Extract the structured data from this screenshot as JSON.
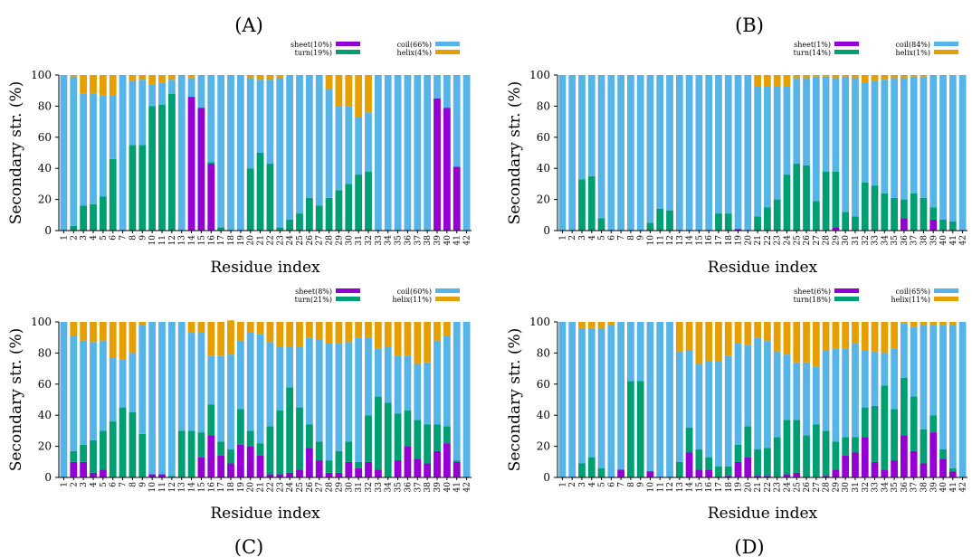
{
  "colors": {
    "sheet": "#9400d3",
    "turn": "#009e73",
    "coil": "#56b4e9",
    "helix": "#e69f00"
  },
  "chart_data": [
    {
      "panel": "(A)",
      "type": "bar",
      "stacked": true,
      "xlabel": "Residue index",
      "ylabel": "Secondary str. (%)",
      "ylim": [
        0,
        100
      ],
      "yticks": [
        0,
        20,
        40,
        60,
        80,
        100
      ],
      "legend": {
        "sheet": "sheet(10%)",
        "turn": "turn(19%)",
        "coil": "coil(66%)",
        "helix": "helix(4%)"
      },
      "categories": [
        "1",
        "2",
        "3",
        "4",
        "5",
        "6",
        "7",
        "8",
        "9",
        "10",
        "11",
        "12",
        "13",
        "14",
        "15",
        "16",
        "17",
        "18",
        "19",
        "20",
        "21",
        "22",
        "23",
        "24",
        "25",
        "26",
        "27",
        "28",
        "29",
        "30",
        "31",
        "32",
        "33",
        "34",
        "35",
        "36",
        "37",
        "38",
        "39",
        "40",
        "41",
        "42"
      ],
      "series": [
        {
          "key": "sheet",
          "values": [
            0,
            0,
            0,
            0,
            0,
            0,
            0,
            0,
            0,
            0,
            0,
            0,
            0,
            86,
            79,
            43,
            0,
            0,
            0,
            0,
            0,
            0,
            0,
            0,
            0,
            0,
            0,
            0,
            0,
            0,
            0,
            0,
            0,
            0,
            0,
            0,
            0,
            0,
            85,
            79,
            41,
            0
          ]
        },
        {
          "key": "turn",
          "values": [
            0,
            3,
            16,
            17,
            22,
            46,
            0,
            55,
            55,
            80,
            81,
            88,
            0,
            0,
            0,
            1,
            2,
            0,
            0,
            40,
            50,
            43,
            2,
            7,
            11,
            21,
            16,
            21,
            26,
            30,
            36,
            38,
            0,
            0,
            0,
            0,
            0,
            0,
            0,
            0,
            0,
            0
          ]
        },
        {
          "key": "coil",
          "values": [
            100,
            96,
            72,
            71,
            65,
            41,
            100,
            41,
            42,
            14,
            14,
            9,
            100,
            12,
            21,
            56,
            98,
            100,
            100,
            58,
            47,
            54,
            96,
            93,
            89,
            79,
            84,
            70,
            54,
            50,
            37,
            38,
            100,
            100,
            100,
            100,
            100,
            100,
            15,
            21,
            59,
            100
          ]
        },
        {
          "key": "helix",
          "values": [
            0,
            1,
            12,
            12,
            13,
            13,
            0,
            4,
            3,
            6,
            5,
            3,
            0,
            2,
            0,
            0,
            0,
            0,
            0,
            2,
            3,
            3,
            2,
            0,
            0,
            0,
            0,
            9,
            20,
            20,
            27,
            24,
            0,
            0,
            0,
            0,
            0,
            0,
            0,
            0,
            0,
            0
          ]
        }
      ]
    },
    {
      "panel": "(B)",
      "type": "bar",
      "stacked": true,
      "xlabel": "Residue index",
      "ylabel": "Secondary str. (%)",
      "ylim": [
        0,
        100
      ],
      "yticks": [
        0,
        20,
        40,
        60,
        80,
        100
      ],
      "legend": {
        "sheet": "sheet(1%)",
        "turn": "turn(14%)",
        "coil": "coil(84%)",
        "helix": "helix(1%)"
      },
      "categories": [
        "1",
        "2",
        "3",
        "4",
        "5",
        "6",
        "7",
        "8",
        "9",
        "10",
        "11",
        "12",
        "13",
        "14",
        "15",
        "16",
        "17",
        "18",
        "19",
        "20",
        "21",
        "22",
        "23",
        "24",
        "25",
        "26",
        "27",
        "28",
        "29",
        "30",
        "31",
        "32",
        "33",
        "34",
        "35",
        "36",
        "37",
        "38",
        "39",
        "40",
        "41",
        "42"
      ],
      "series": [
        {
          "key": "sheet",
          "values": [
            0,
            0,
            0,
            0,
            0,
            0,
            0,
            0,
            0,
            0,
            0,
            0,
            0,
            0,
            0,
            0,
            0,
            0,
            1,
            0,
            0,
            0,
            0,
            0,
            0,
            0,
            0,
            0,
            2,
            0,
            0,
            0,
            0,
            0,
            0,
            8,
            0,
            0,
            7,
            0,
            0,
            0
          ]
        },
        {
          "key": "turn",
          "values": [
            0,
            0,
            33,
            35,
            8,
            0,
            0,
            0,
            0,
            5,
            14,
            13,
            0,
            0,
            0,
            0,
            11,
            11,
            0,
            0,
            9,
            15,
            20,
            36,
            43,
            42,
            19,
            38,
            36,
            12,
            9,
            31,
            29,
            24,
            21,
            12,
            24,
            21,
            8,
            7,
            6,
            0
          ]
        },
        {
          "key": "coil",
          "values": [
            100,
            100,
            67,
            65,
            92,
            100,
            100,
            100,
            100,
            95,
            86,
            87,
            100,
            100,
            100,
            100,
            89,
            89,
            99,
            100,
            84,
            78,
            73,
            57,
            55,
            56,
            80,
            61,
            60,
            87,
            89,
            64,
            67,
            73,
            77,
            78,
            75,
            78,
            85,
            93,
            94,
            100
          ]
        },
        {
          "key": "helix",
          "values": [
            0,
            0,
            0,
            0,
            0,
            0,
            0,
            0,
            0,
            0,
            0,
            0,
            0,
            0,
            0,
            0,
            0,
            0,
            0,
            0,
            7,
            7,
            7,
            7,
            2,
            2,
            1,
            1,
            2,
            1,
            2,
            5,
            4,
            3,
            2,
            2,
            1,
            1,
            0,
            0,
            0,
            0
          ]
        }
      ]
    },
    {
      "panel": "(C)",
      "type": "bar",
      "stacked": true,
      "xlabel": "Residue index",
      "ylabel": "Secondary str. (%)",
      "ylim": [
        0,
        100
      ],
      "yticks": [
        0,
        20,
        40,
        60,
        80,
        100
      ],
      "legend": {
        "sheet": "sheet(8%)",
        "turn": "turn(21%)",
        "coil": "coil(60%)",
        "helix": "helix(11%)"
      },
      "categories": [
        "1",
        "2",
        "3",
        "4",
        "5",
        "6",
        "7",
        "8",
        "9",
        "10",
        "11",
        "12",
        "13",
        "14",
        "15",
        "16",
        "17",
        "18",
        "19",
        "20",
        "21",
        "22",
        "23",
        "24",
        "25",
        "26",
        "27",
        "28",
        "29",
        "30",
        "31",
        "32",
        "33",
        "34",
        "35",
        "36",
        "37",
        "38",
        "39",
        "40",
        "41",
        "42"
      ],
      "series": [
        {
          "key": "sheet",
          "values": [
            0,
            10,
            10,
            3,
            5,
            0,
            0,
            0,
            0,
            2,
            2,
            0,
            0,
            0,
            13,
            27,
            14,
            9,
            21,
            20,
            14,
            2,
            2,
            3,
            5,
            19,
            11,
            3,
            3,
            10,
            6,
            10,
            5,
            0,
            11,
            20,
            12,
            9,
            17,
            22,
            10,
            0
          ]
        },
        {
          "key": "turn",
          "values": [
            0,
            7,
            11,
            21,
            25,
            36,
            45,
            42,
            28,
            0,
            0,
            1,
            30,
            30,
            16,
            20,
            9,
            9,
            23,
            10,
            8,
            31,
            41,
            55,
            40,
            15,
            12,
            8,
            14,
            13,
            4,
            30,
            47,
            48,
            30,
            23,
            25,
            25,
            17,
            11,
            1,
            0
          ]
        },
        {
          "key": "coil",
          "values": [
            100,
            74,
            67,
            63,
            58,
            41,
            31,
            38,
            70,
            98,
            98,
            99,
            70,
            63,
            64,
            31,
            55,
            61,
            44,
            63,
            70,
            54,
            41,
            26,
            39,
            56,
            66,
            75,
            69,
            64,
            80,
            50,
            31,
            36,
            37,
            35,
            36,
            40,
            54,
            58,
            89,
            100
          ]
        },
        {
          "key": "helix",
          "values": [
            0,
            9,
            12,
            13,
            12,
            23,
            24,
            20,
            2,
            0,
            0,
            0,
            0,
            7,
            7,
            22,
            22,
            22,
            12,
            7,
            8,
            13,
            16,
            16,
            16,
            10,
            11,
            14,
            14,
            13,
            10,
            10,
            17,
            16,
            22,
            22,
            27,
            26,
            12,
            9,
            0,
            0
          ]
        }
      ]
    },
    {
      "panel": "(D)",
      "type": "bar",
      "stacked": true,
      "xlabel": "Residue index",
      "ylabel": "Secondary str. (%)",
      "ylim": [
        0,
        100
      ],
      "yticks": [
        0,
        20,
        40,
        60,
        80,
        100
      ],
      "legend": {
        "sheet": "sheet(6%)",
        "turn": "turn(18%)",
        "coil": "coil(65%)",
        "helix": "helix(11%)"
      },
      "categories": [
        "1",
        "2",
        "3",
        "4",
        "5",
        "6",
        "7",
        "8",
        "9",
        "10",
        "11",
        "12",
        "13",
        "14",
        "15",
        "16",
        "17",
        "18",
        "19",
        "20",
        "21",
        "22",
        "23",
        "24",
        "25",
        "26",
        "27",
        "28",
        "29",
        "30",
        "31",
        "32",
        "33",
        "34",
        "35",
        "36",
        "37",
        "38",
        "39",
        "40",
        "41",
        "42"
      ],
      "series": [
        {
          "key": "sheet",
          "values": [
            0,
            0,
            0,
            0,
            0,
            0,
            5,
            0,
            0,
            4,
            0,
            0,
            0,
            16,
            5,
            5,
            0,
            1,
            10,
            13,
            1,
            1,
            0,
            2,
            3,
            0,
            0,
            1,
            5,
            14,
            16,
            26,
            10,
            5,
            11,
            27,
            17,
            9,
            29,
            12,
            4,
            0
          ]
        },
        {
          "key": "turn",
          "values": [
            0,
            0,
            9,
            13,
            6,
            0,
            0,
            62,
            62,
            0,
            0,
            0,
            10,
            16,
            13,
            8,
            7,
            6,
            11,
            20,
            17,
            18,
            26,
            35,
            34,
            27,
            34,
            29,
            18,
            12,
            10,
            19,
            36,
            54,
            33,
            37,
            35,
            22,
            11,
            6,
            2,
            0
          ]
        },
        {
          "key": "coil",
          "values": [
            100,
            100,
            87,
            83,
            90,
            98,
            95,
            38,
            38,
            96,
            100,
            100,
            71,
            50,
            55,
            62,
            68,
            71,
            65,
            52,
            72,
            69,
            55,
            42,
            37,
            47,
            37,
            52,
            60,
            57,
            60,
            37,
            35,
            21,
            39,
            35,
            45,
            67,
            58,
            80,
            92,
            100
          ]
        },
        {
          "key": "helix",
          "values": [
            0,
            0,
            4,
            4,
            4,
            2,
            0,
            0,
            0,
            0,
            0,
            0,
            19,
            18,
            27,
            25,
            25,
            22,
            14,
            15,
            10,
            12,
            19,
            21,
            26,
            26,
            29,
            18,
            17,
            17,
            14,
            18,
            19,
            20,
            17,
            1,
            3,
            2,
            2,
            2,
            2,
            0
          ]
        }
      ]
    }
  ]
}
